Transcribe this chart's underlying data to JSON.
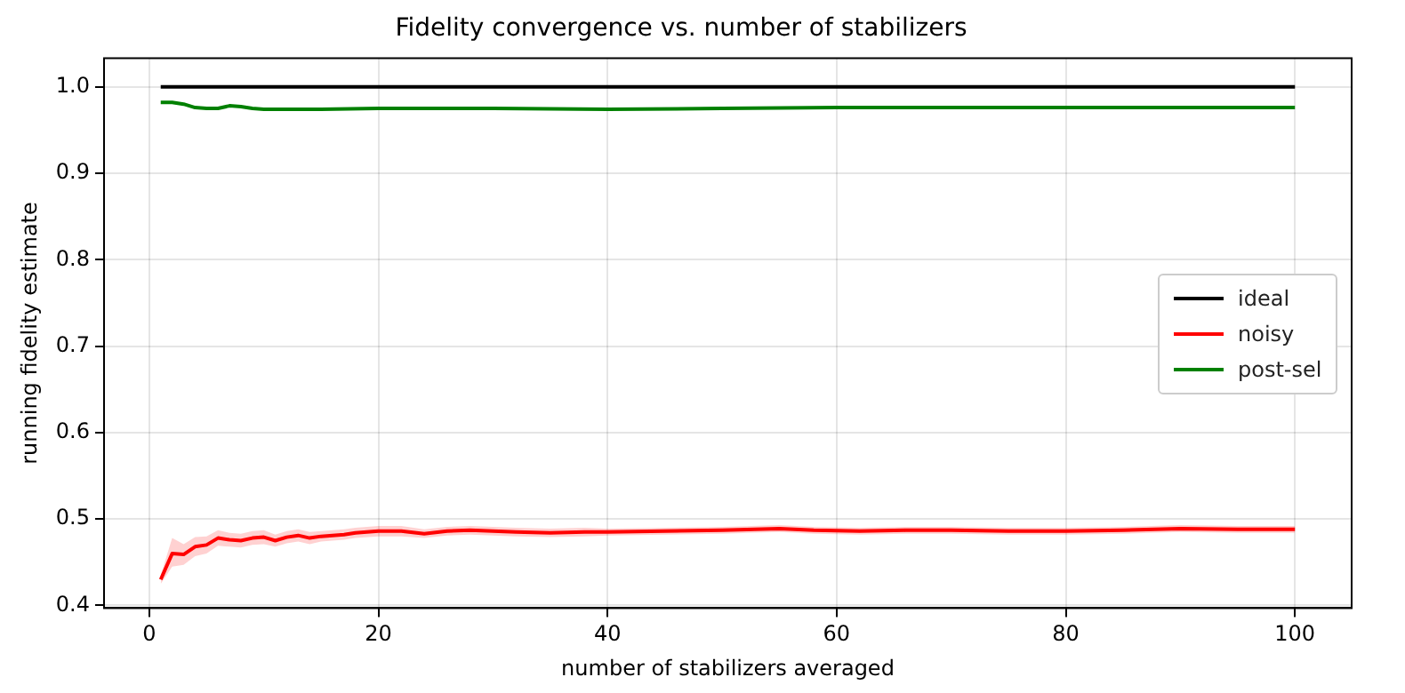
{
  "chart_data": {
    "type": "line",
    "title": "Fidelity convergence vs. number of stabilizers",
    "xlabel": "number of stabilizers averaged",
    "ylabel": "running fidelity estimate",
    "xlim": [
      -3.95,
      104.95
    ],
    "xticks": [
      0,
      20,
      40,
      60,
      80,
      100
    ],
    "ylim": [
      0.397,
      1.033
    ],
    "yticks": [
      {
        "value": 0.4,
        "label": "0.4"
      },
      {
        "value": 0.5,
        "label": "0.5"
      },
      {
        "value": 0.6,
        "label": "0.6"
      },
      {
        "value": 0.7,
        "label": "0.7"
      },
      {
        "value": 0.8,
        "label": "0.8"
      },
      {
        "value": 0.9,
        "label": "0.9"
      },
      {
        "value": 1.0,
        "label": "1.0"
      }
    ],
    "grid": true,
    "legend": "right",
    "marker": "none",
    "line_style": "solid",
    "series": [
      {
        "name": "ideal",
        "color": "#000000",
        "x": [
          1,
          100
        ],
        "values": [
          1.0,
          1.0
        ]
      },
      {
        "name": "noisy",
        "color": "#ff0000",
        "x": [
          1,
          2,
          3,
          4,
          5,
          6,
          7,
          8,
          9,
          10,
          11,
          12,
          13,
          14,
          15,
          17,
          18,
          20,
          22,
          24,
          26,
          28,
          30,
          32,
          35,
          38,
          40,
          45,
          50,
          55,
          58,
          62,
          66,
          70,
          75,
          80,
          85,
          90,
          95,
          100
        ],
        "values": [
          0.43,
          0.46,
          0.459,
          0.468,
          0.47,
          0.478,
          0.476,
          0.475,
          0.478,
          0.479,
          0.475,
          0.479,
          0.481,
          0.478,
          0.48,
          0.482,
          0.484,
          0.486,
          0.486,
          0.483,
          0.486,
          0.487,
          0.486,
          0.485,
          0.484,
          0.485,
          0.485,
          0.486,
          0.487,
          0.489,
          0.487,
          0.486,
          0.487,
          0.487,
          0.486,
          0.486,
          0.487,
          0.489,
          0.488,
          0.488
        ],
        "lower": [
          0.425,
          0.445,
          0.447,
          0.457,
          0.46,
          0.469,
          0.468,
          0.467,
          0.47,
          0.471,
          0.468,
          0.472,
          0.474,
          0.471,
          0.474,
          0.476,
          0.478,
          0.48,
          0.48,
          0.478,
          0.481,
          0.482,
          0.481,
          0.48,
          0.479,
          0.48,
          0.481,
          0.482,
          0.483,
          0.485,
          0.483,
          0.482,
          0.483,
          0.483,
          0.482,
          0.482,
          0.483,
          0.485,
          0.484,
          0.484
        ],
        "upper": [
          0.435,
          0.478,
          0.471,
          0.479,
          0.48,
          0.487,
          0.484,
          0.483,
          0.486,
          0.487,
          0.482,
          0.486,
          0.488,
          0.485,
          0.486,
          0.488,
          0.49,
          0.492,
          0.492,
          0.488,
          0.491,
          0.492,
          0.491,
          0.49,
          0.489,
          0.49,
          0.489,
          0.49,
          0.491,
          0.493,
          0.491,
          0.49,
          0.491,
          0.491,
          0.49,
          0.49,
          0.491,
          0.493,
          0.492,
          0.492
        ]
      },
      {
        "name": "post-sel",
        "color": "#008000",
        "x": [
          1,
          2,
          3,
          4,
          5,
          6,
          7,
          8,
          9,
          10,
          15,
          20,
          30,
          40,
          50,
          60,
          70,
          80,
          90,
          100
        ],
        "values": [
          0.982,
          0.982,
          0.98,
          0.976,
          0.975,
          0.975,
          0.978,
          0.977,
          0.975,
          0.974,
          0.974,
          0.975,
          0.975,
          0.974,
          0.975,
          0.976,
          0.976,
          0.976,
          0.976,
          0.976
        ]
      }
    ]
  }
}
